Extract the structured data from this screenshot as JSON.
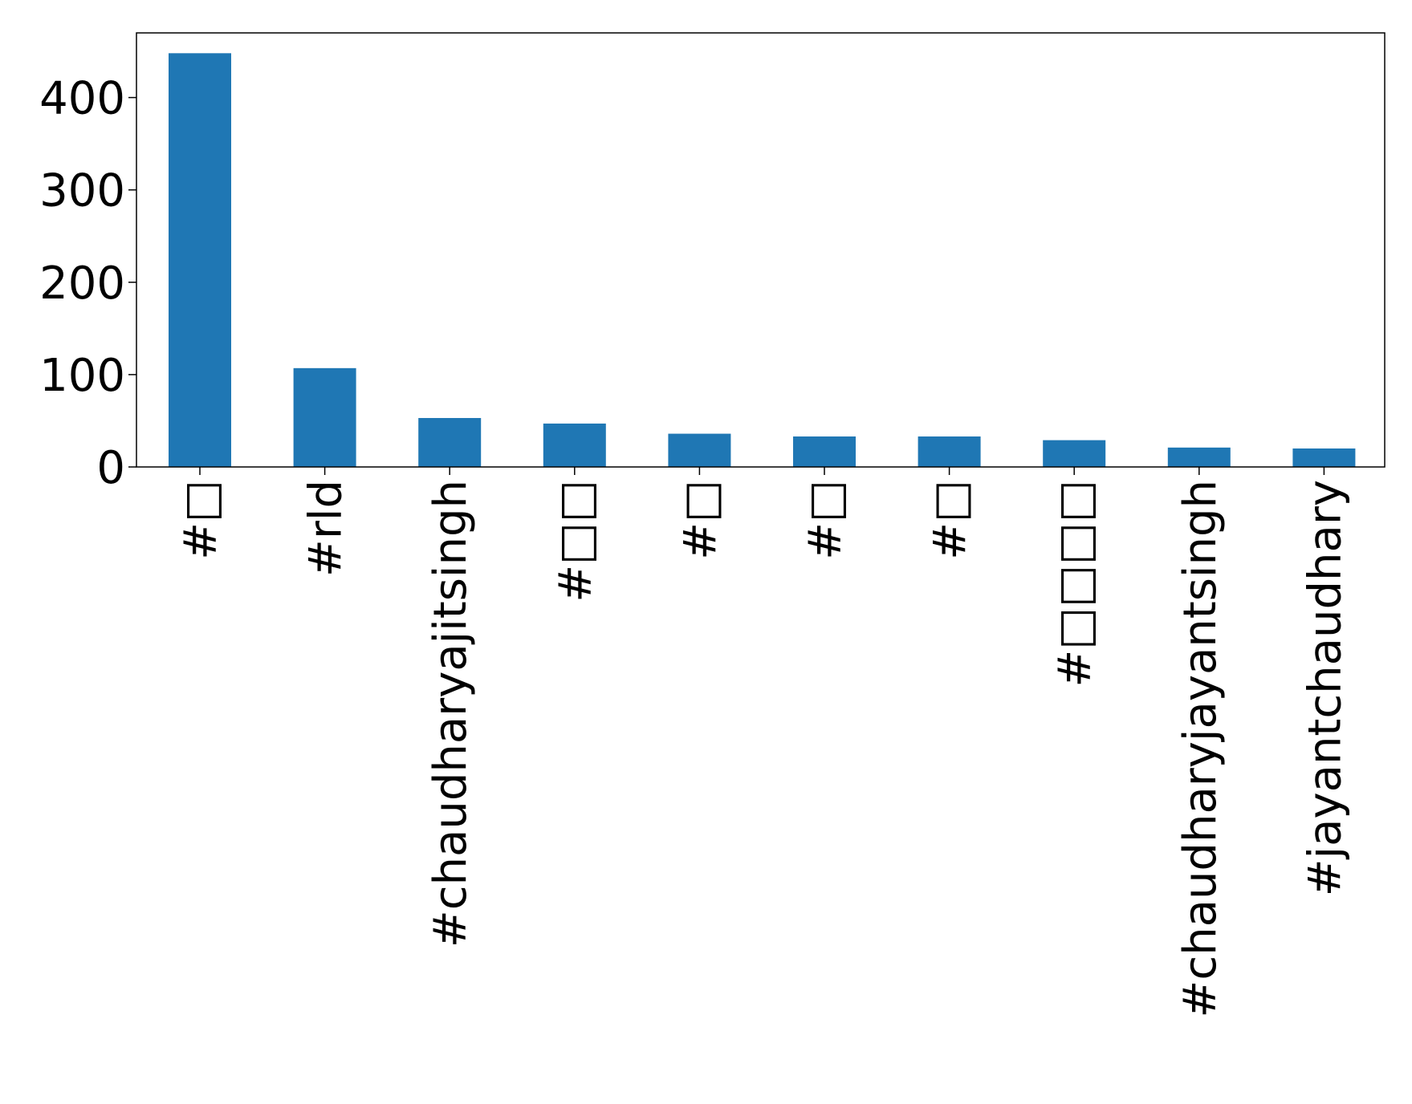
{
  "chart_data": {
    "type": "bar",
    "categories": [
      "#□",
      "#rld",
      "#chaudharyajitsingh",
      "#□□",
      "#□",
      "#□",
      "#□",
      "#□□□□",
      "#chaudharyjayantsingh",
      "#jayantchaudhary"
    ],
    "values": [
      448,
      107,
      53,
      47,
      36,
      33,
      33,
      29,
      21,
      20
    ],
    "ylim": [
      0,
      470
    ],
    "yticks": [
      0,
      100,
      200,
      300,
      400
    ],
    "title": "",
    "xlabel": "",
    "ylabel": "",
    "grid": false,
    "legend": "none",
    "colors": {
      "bar": "#1f77b4",
      "axis": "#000000",
      "background": "#ffffff"
    }
  }
}
